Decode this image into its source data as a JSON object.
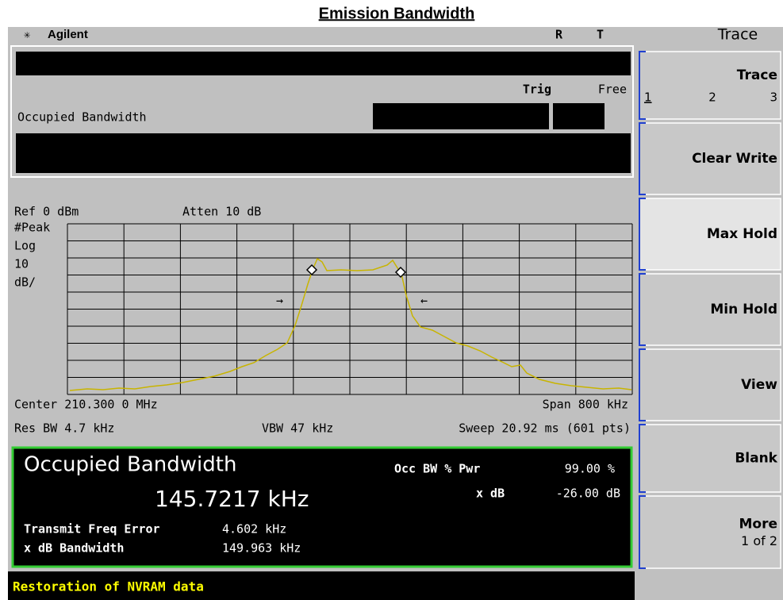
{
  "title": "Emission Bandwidth",
  "header": {
    "brand": "Agilent",
    "status_r": "R",
    "status_t": "T",
    "menu_title": "Trace"
  },
  "meas": {
    "trig_label": "Trig",
    "trig_value": "Free",
    "name": "Occupied Bandwidth"
  },
  "graph": {
    "ref": "Ref 0 dBm",
    "atten": "Atten 10 dB",
    "left_labels": [
      "#Peak",
      "Log",
      "10",
      "dB/"
    ],
    "center": "Center 210.300 0 MHz",
    "span": "Span 800 kHz",
    "res_bw": "Res BW 4.7 kHz",
    "vbw": "VBW 47 kHz",
    "sweep": "Sweep 20.92 ms (601 pts)"
  },
  "results": {
    "title": "Occupied Bandwidth",
    "value": "145.7217 kHz",
    "occ_label": "Occ BW % Pwr",
    "occ_value": "99.00 %",
    "xdb_label": "x dB",
    "xdb_value": "-26.00 dB",
    "tfe_label": "Transmit Freq Error",
    "tfe_value": "4.602 kHz",
    "xbw_label": "x dB Bandwidth",
    "xbw_value": "149.963 kHz"
  },
  "status": "Restoration of NVRAM data",
  "softkeys": [
    {
      "label": "Trace",
      "options": [
        "1",
        "2",
        "3"
      ]
    },
    {
      "label": "Clear Write"
    },
    {
      "label": "Max Hold"
    },
    {
      "label": "Min Hold"
    },
    {
      "label": "View"
    },
    {
      "label": "Blank"
    },
    {
      "label": "More",
      "sub": "1 of 2"
    }
  ]
}
